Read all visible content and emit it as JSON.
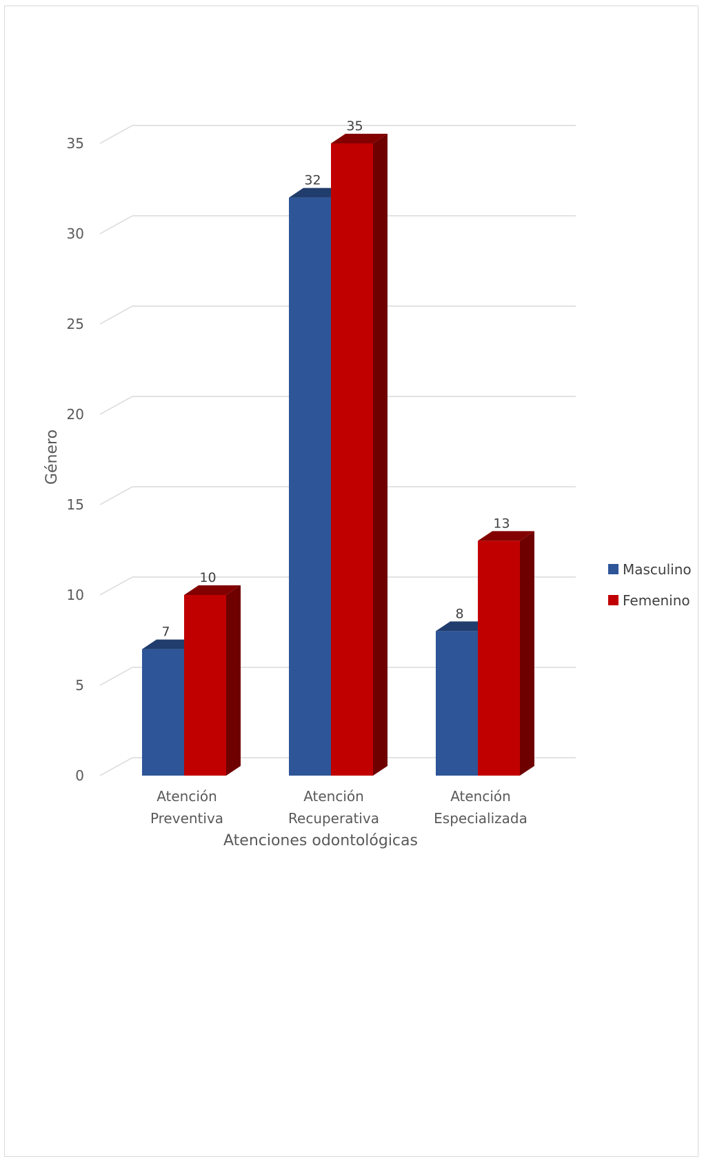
{
  "chart_data": {
    "type": "bar",
    "title": "",
    "xlabel": "Atenciones odontológicas",
    "ylabel": "Género",
    "categories": [
      [
        "Atención",
        "Preventiva"
      ],
      [
        "Atención",
        "Recuperativa"
      ],
      [
        "Atención",
        "Especializada"
      ]
    ],
    "series": [
      {
        "name": "Masculino",
        "values": [
          7,
          32,
          8
        ],
        "color": "#2e5597"
      },
      {
        "name": "Femenino",
        "values": [
          10,
          35,
          13
        ],
        "color": "#c00000"
      }
    ],
    "ylim": [
      0,
      35
    ],
    "yticks": [
      "0",
      "5",
      "10",
      "15",
      "20",
      "25",
      "30",
      "35"
    ],
    "grid": true,
    "legend": "right",
    "style": "3d-column"
  }
}
